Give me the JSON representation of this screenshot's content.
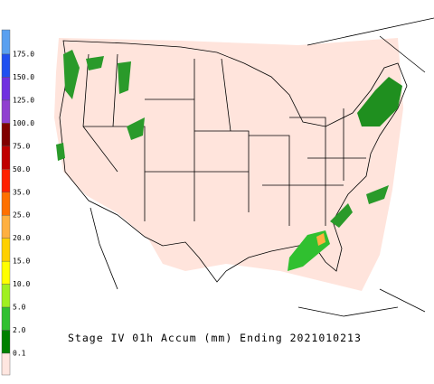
{
  "legend": {
    "labels": [
      "175.0",
      "150.0",
      "125.0",
      "100.0",
      "75.0",
      "50.0",
      "35.0",
      "25.0",
      "20.0",
      "15.0",
      "10.0",
      "5.0",
      "2.0",
      "0.1"
    ],
    "colors": [
      "#5aa0f0",
      "#2050f0",
      "#7030e0",
      "#9040d0",
      "#800000",
      "#c00000",
      "#ff2000",
      "#ff7000",
      "#ffb040",
      "#ffd000",
      "#ffff00",
      "#a0f020",
      "#30c030",
      "#008000",
      "#ffe6e0"
    ]
  },
  "title": "Stage IV 01h Accum (mm) Ending 2021010213"
}
